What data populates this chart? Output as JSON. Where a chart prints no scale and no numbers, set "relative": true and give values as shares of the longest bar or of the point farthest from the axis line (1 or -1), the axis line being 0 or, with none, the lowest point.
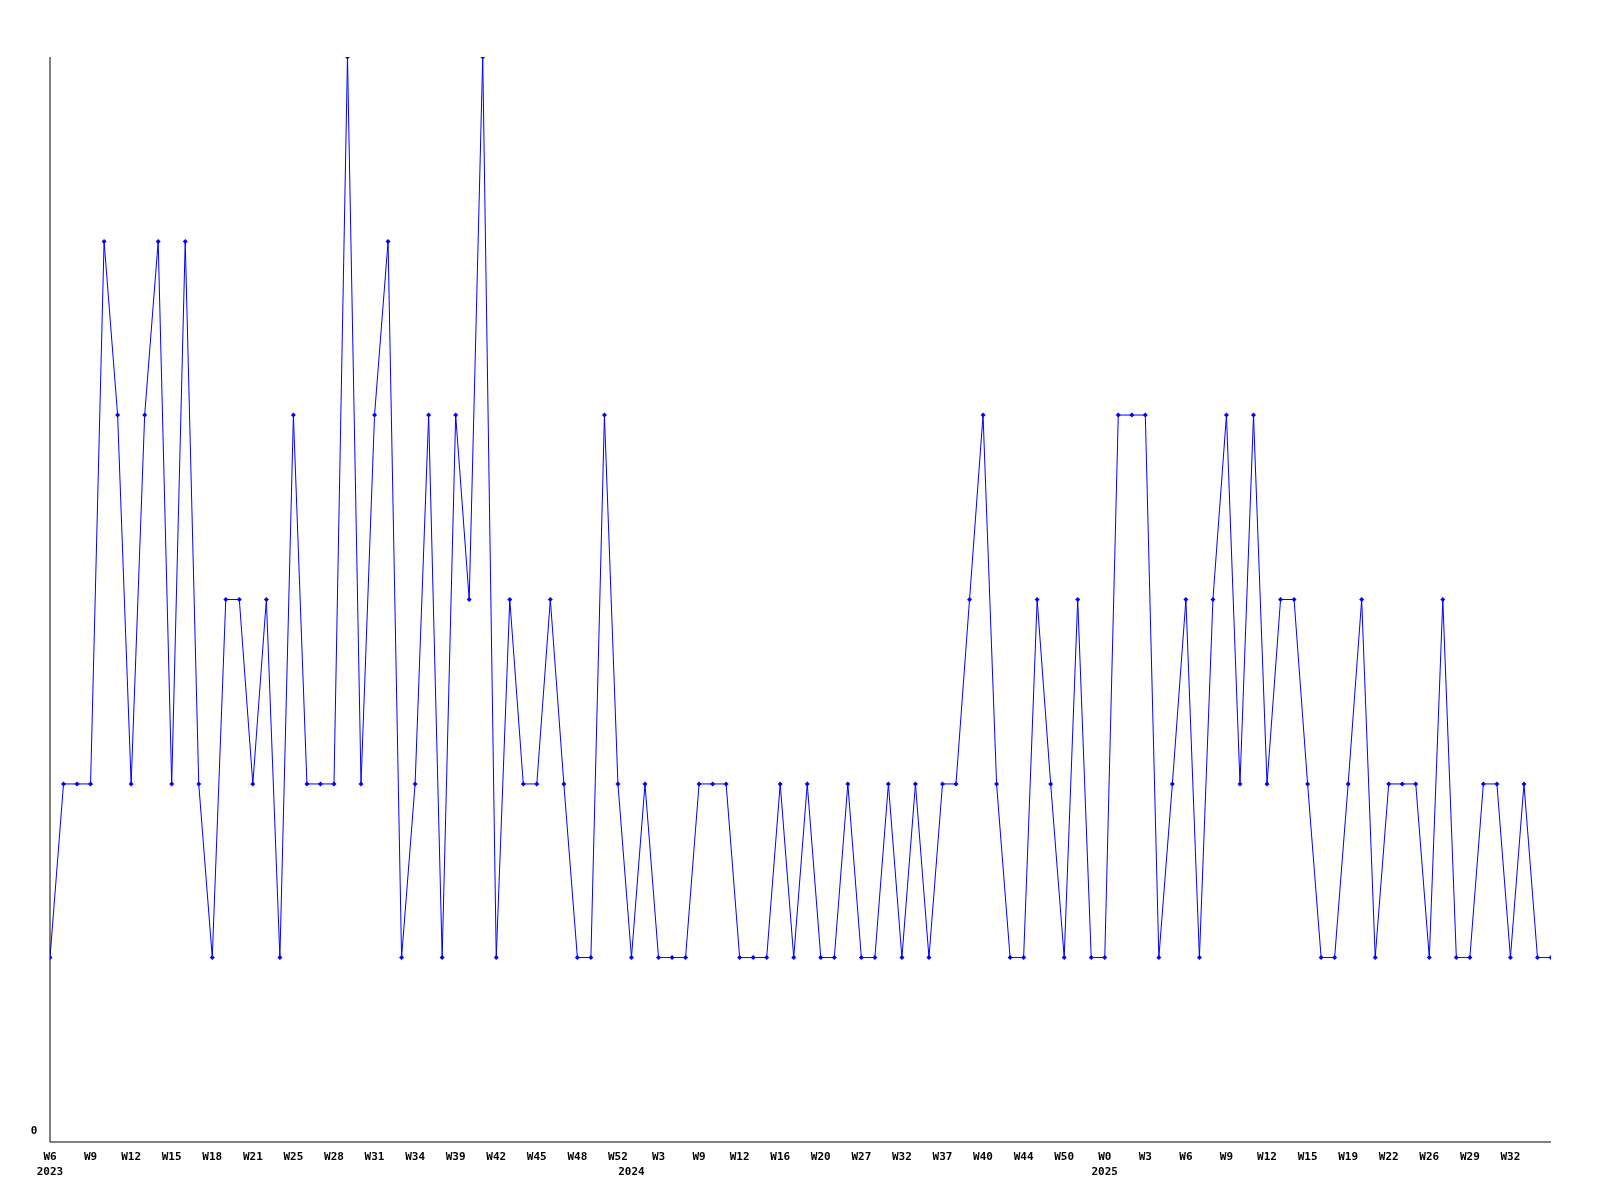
{
  "chart_data": {
    "type": "line",
    "relative": true,
    "annotations": [
      "0"
    ],
    "marker": "diamond",
    "grid": false,
    "legend": false,
    "categories": [
      "W6\n2023",
      null,
      null,
      "W9",
      null,
      null,
      "W12",
      null,
      null,
      "W15",
      null,
      null,
      "W18",
      null,
      null,
      "W21",
      null,
      null,
      "W25",
      null,
      null,
      "W28",
      null,
      null,
      "W31",
      null,
      null,
      "W34",
      null,
      null,
      "W39",
      null,
      null,
      "W42",
      null,
      null,
      "W45",
      null,
      null,
      "W48",
      null,
      null,
      "W52",
      "\n2024",
      null,
      "W3",
      null,
      null,
      "W9",
      null,
      null,
      "W12",
      null,
      null,
      "W16",
      null,
      null,
      "W20",
      null,
      null,
      "W27",
      null,
      null,
      "W32",
      null,
      null,
      "W37",
      null,
      null,
      "W40",
      null,
      null,
      "W44",
      null,
      null,
      "W50",
      null,
      null,
      "W0\n2025",
      null,
      null,
      "W3",
      null,
      null,
      "W6",
      null,
      null,
      "W9",
      null,
      null,
      "W12",
      null,
      null,
      "W15",
      null,
      null,
      "W19",
      null,
      null,
      "W22",
      null,
      null,
      "W26",
      null,
      null,
      "W29",
      null,
      null,
      "W32",
      null,
      null,
      null
    ],
    "series": [
      {
        "color": "#0000ff",
        "values": [
          0.17,
          0.33,
          0.33,
          0.33,
          0.83,
          0.67,
          0.33,
          0.67,
          0.83,
          0.33,
          0.83,
          0.33,
          0.17,
          0.5,
          0.5,
          0.33,
          0.5,
          0.17,
          0.67,
          0.33,
          0.33,
          0.33,
          1,
          0.33,
          0.67,
          0.83,
          0.17,
          0.33,
          0.67,
          0.17,
          0.67,
          0.5,
          1,
          0.17,
          0.5,
          0.33,
          0.33,
          0.5,
          0.33,
          0.17,
          0.17,
          0.67,
          0.33,
          0.17,
          0.33,
          0.17,
          0.17,
          0.17,
          0.33,
          0.33,
          0.33,
          0.17,
          0.17,
          0.17,
          0.33,
          0.17,
          0.33,
          0.17,
          0.17,
          0.33,
          0.17,
          0.17,
          0.33,
          0.17,
          0.33,
          0.17,
          0.33,
          0.33,
          0.5,
          0.67,
          0.33,
          0.17,
          0.17,
          0.5,
          0.33,
          0.17,
          0.5,
          0.17,
          0.17,
          0.67,
          0.67,
          0.67,
          0.17,
          0.33,
          0.5,
          0.17,
          0.5,
          0.67,
          0.33,
          0.67,
          0.33,
          0.5,
          0.5,
          0.33,
          0.17,
          0.17,
          0.33,
          0.5,
          0.17,
          0.33,
          0.33,
          0.33,
          0.17,
          0.5,
          0.17,
          0.17,
          0.33,
          0.33,
          0.17,
          0.33,
          0.17,
          0.17
        ]
      }
    ]
  }
}
